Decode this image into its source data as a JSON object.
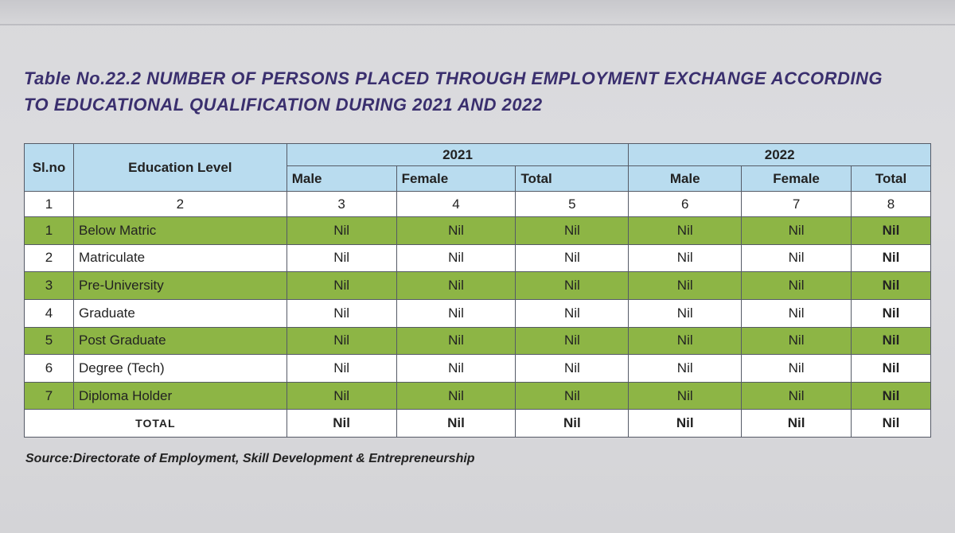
{
  "title": {
    "line1": "Table No.22.2 NUMBER OF PERSONS PLACED THROUGH EMPLOYMENT EXCHANGE ACCORDING",
    "line2": "TO EDUCATIONAL QUALIFICATION DURING 2021 AND 2022"
  },
  "table": {
    "header": {
      "slno": "Sl.no",
      "education_level": "Education Level",
      "year1": "2021",
      "year2": "2022",
      "male": "Male",
      "female": "Female",
      "total": "Total"
    },
    "column_numbers": [
      "1",
      "2",
      "3",
      "4",
      "5",
      "6",
      "7",
      "8"
    ],
    "rows": [
      {
        "sl": "1",
        "level": "Below Matric",
        "values": [
          "Nil",
          "Nil",
          "Nil",
          "Nil",
          "Nil",
          "Nil"
        ]
      },
      {
        "sl": "2",
        "level": "Matriculate",
        "values": [
          "Nil",
          "Nil",
          "Nil",
          "Nil",
          "Nil",
          "Nil"
        ]
      },
      {
        "sl": "3",
        "level": "Pre-University",
        "values": [
          "Nil",
          "Nil",
          "Nil",
          "Nil",
          "Nil",
          "Nil"
        ]
      },
      {
        "sl": "4",
        "level": "Graduate",
        "values": [
          "Nil",
          "Nil",
          "Nil",
          "Nil",
          "Nil",
          "Nil"
        ]
      },
      {
        "sl": "5",
        "level": "Post Graduate",
        "values": [
          "Nil",
          "Nil",
          "Nil",
          "Nil",
          "Nil",
          "Nil"
        ]
      },
      {
        "sl": "6",
        "level": "Degree (Tech)",
        "values": [
          "Nil",
          "Nil",
          "Nil",
          "Nil",
          "Nil",
          "Nil"
        ]
      },
      {
        "sl": "7",
        "level": "Diploma Holder",
        "values": [
          "Nil",
          "Nil",
          "Nil",
          "Nil",
          "Nil",
          "Nil"
        ]
      }
    ],
    "total_row": {
      "label": "TOTAL",
      "values": [
        "Nil",
        "Nil",
        "Nil",
        "Nil",
        "Nil",
        "Nil"
      ]
    }
  },
  "source": "Source:Directorate of Employment, Skill Development & Entrepreneurship",
  "colors": {
    "title": "#3a2f6e",
    "header_bg": "#b9dcef",
    "green_row_bg": "#8db545",
    "white_row_bg": "#ffffff"
  }
}
